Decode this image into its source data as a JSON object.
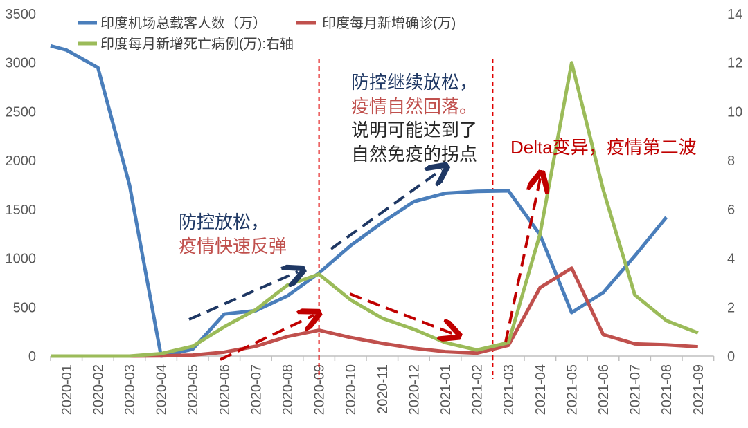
{
  "chart_data": {
    "type": "line",
    "categories": [
      "2020-01",
      "2020-02",
      "2020-03",
      "2020-04",
      "2020-05",
      "2020-06",
      "2020-07",
      "2020-08",
      "2020-09",
      "2020-10",
      "2020-11",
      "2020-12",
      "2021-01",
      "2021-02",
      "2021-03",
      "2021-04",
      "2021-05",
      "2021-06",
      "2021-07",
      "2021-08",
      "2021-09"
    ],
    "y_left": {
      "range": [
        0,
        3500
      ],
      "ticks": [
        "0",
        "500",
        "1000",
        "1500",
        "2000",
        "2500",
        "3000",
        "3500"
      ]
    },
    "y_right": {
      "range": [
        0,
        14
      ],
      "ticks": [
        "0",
        "2",
        "4",
        "6",
        "8",
        "10",
        "12",
        "14"
      ]
    },
    "series": [
      {
        "name": "印度机场总载客人数（万）",
        "axis": "left",
        "color": "#4a7ebb",
        "values": [
          3130,
          2950,
          1750,
          0,
          70,
          430,
          465,
          615,
          850,
          1130,
          1365,
          1580,
          1665,
          1685,
          1690,
          1240,
          445,
          650,
          1025,
          1420,
          null
        ]
      },
      {
        "name": "印度每月新增确诊(万)",
        "axis": "left",
        "color": "#c0504d",
        "values": [
          0,
          0,
          0,
          2,
          10,
          40,
          100,
          200,
          265,
          190,
          130,
          80,
          45,
          30,
          110,
          700,
          900,
          220,
          125,
          115,
          95
        ]
      },
      {
        "name": "印度每月新增死亡病例(万):右轴",
        "axis": "right",
        "color": "#9bbb59",
        "values": [
          0,
          0,
          0,
          0.1,
          0.4,
          1.2,
          1.9,
          2.9,
          3.35,
          2.3,
          1.55,
          1.1,
          0.55,
          0.25,
          0.55,
          5.0,
          12.0,
          6.8,
          2.5,
          1.45,
          0.95
        ]
      }
    ],
    "legend_position": "top",
    "grid": false,
    "vlines_at": [
      "2020-09",
      "2021-02/2021-03"
    ]
  },
  "annotations": {
    "a1_line1": "防控放松，",
    "a1_line2": "疫情快速反弹",
    "a2_line1": "防控继续放松，",
    "a2_line2": "疫情自然回落。",
    "a2_line3": "说明可能达到了",
    "a2_line4": "自然免疫的拐点",
    "a3": "Delta变异，疫情第二波"
  },
  "colors": {
    "navy": "#1f3864",
    "red": "#c00000",
    "annRed": "#c0504d"
  }
}
